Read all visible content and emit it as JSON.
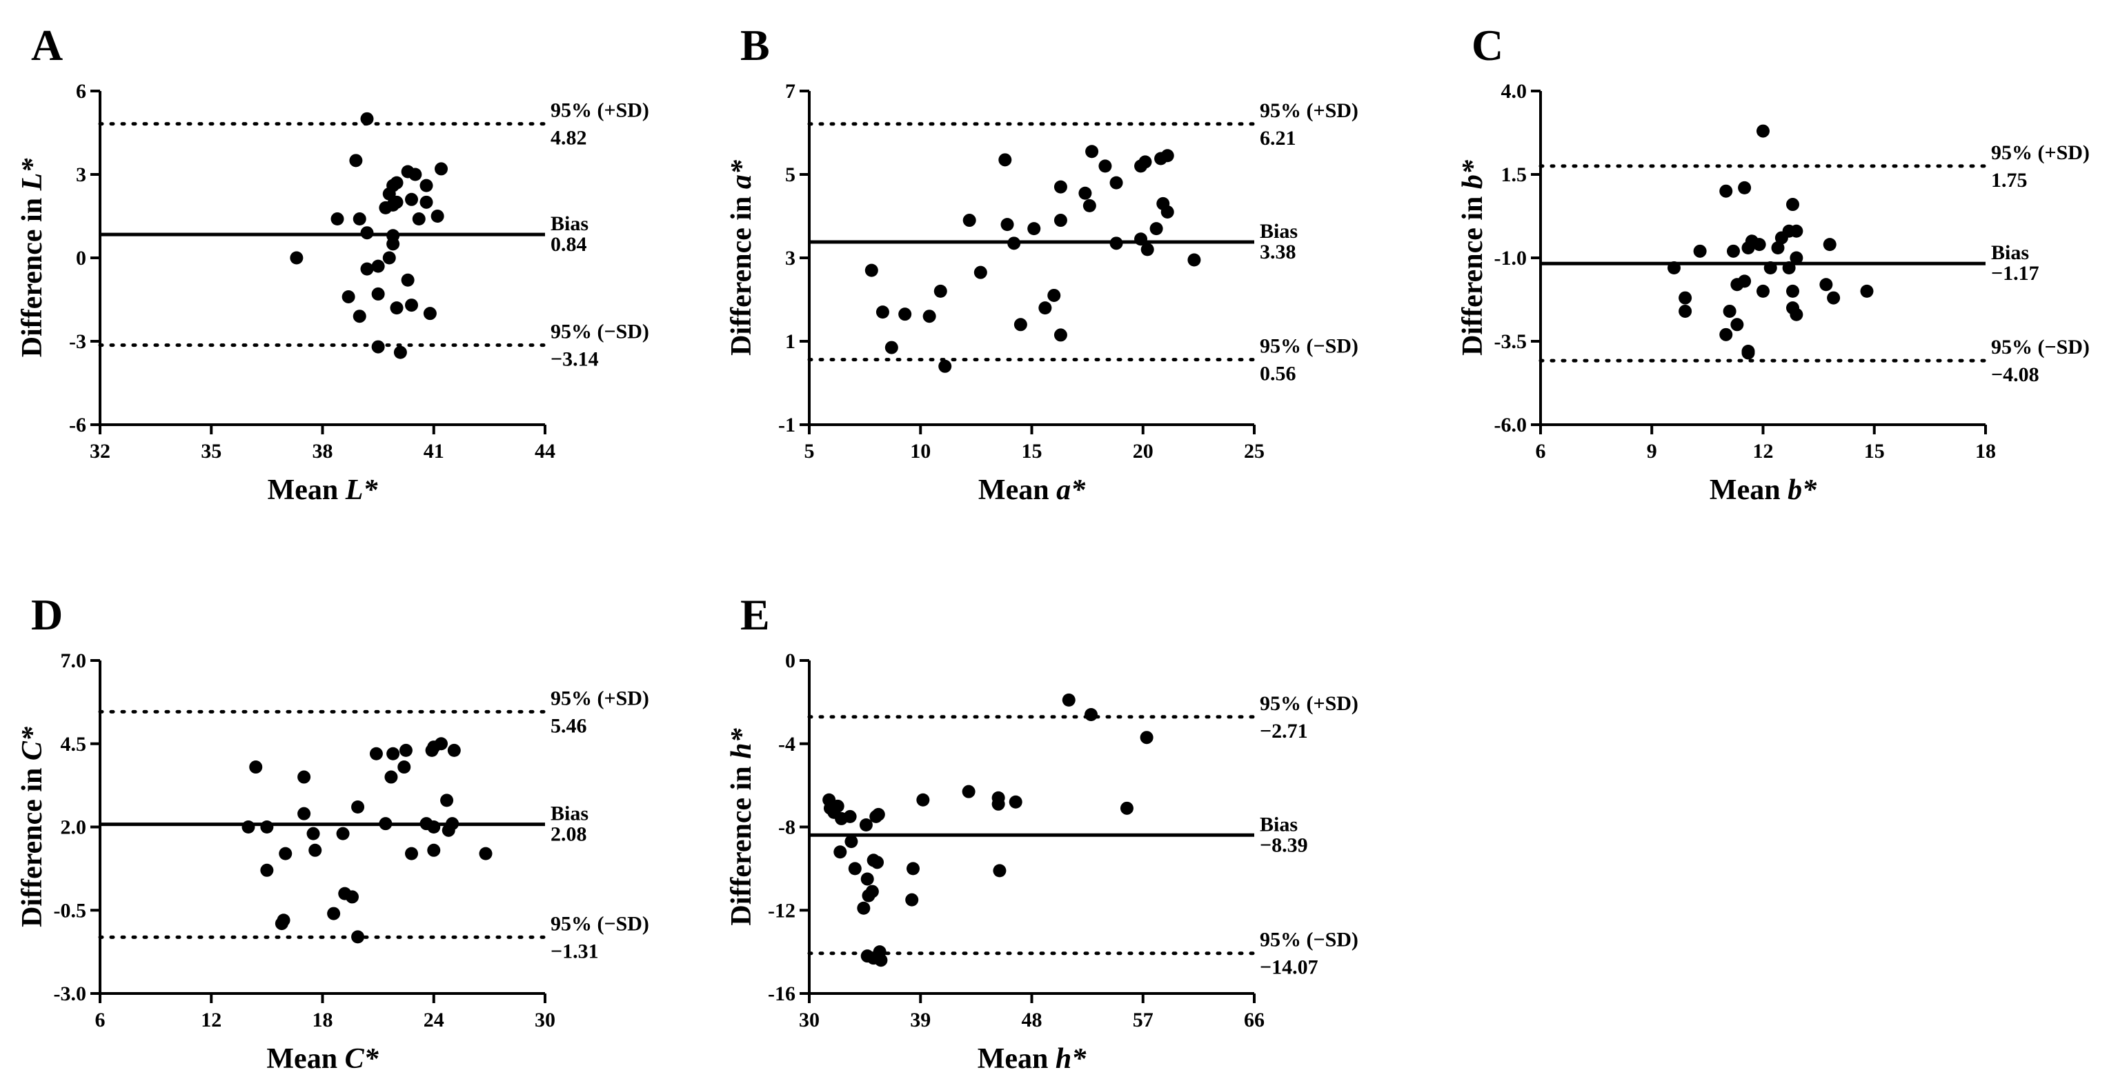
{
  "figure": {
    "background": "#ffffff",
    "ink": "#000000"
  },
  "chart_data": [
    {
      "type": "scatter",
      "panel": "A",
      "xlabel_pre": "Mean ",
      "xlabel_var": "L*",
      "ylabel_pre": "Difference in ",
      "ylabel_var": "L*",
      "xlim": [
        32,
        44
      ],
      "ylim": [
        -6,
        6
      ],
      "xticks": [
        32,
        35,
        38,
        41,
        44
      ],
      "yticks": [
        -6,
        -3,
        0,
        3,
        6
      ],
      "ytick_labels": [
        "-6",
        "-3",
        "0",
        "3",
        "6"
      ],
      "bias": 0.84,
      "upper": 4.82,
      "lower": -3.14,
      "bias_label": "Bias",
      "bias_value": "0.84",
      "upper_label": "95% (+SD)",
      "upper_value": "4.82",
      "lower_label": "95% (−SD)",
      "lower_value": "−3.14",
      "points": [
        [
          39.2,
          5.0
        ],
        [
          38.9,
          3.5
        ],
        [
          41.2,
          3.2
        ],
        [
          40.3,
          3.1
        ],
        [
          40.5,
          3.0
        ],
        [
          40.0,
          2.7
        ],
        [
          39.9,
          2.6
        ],
        [
          40.8,
          2.6
        ],
        [
          39.8,
          2.3
        ],
        [
          40.4,
          2.1
        ],
        [
          40.0,
          2.0
        ],
        [
          39.9,
          1.9
        ],
        [
          40.8,
          2.0
        ],
        [
          39.7,
          1.8
        ],
        [
          40.6,
          1.4
        ],
        [
          41.1,
          1.5
        ],
        [
          38.4,
          1.4
        ],
        [
          39.0,
          1.4
        ],
        [
          39.2,
          0.9
        ],
        [
          39.9,
          0.8
        ],
        [
          39.9,
          0.5
        ],
        [
          37.3,
          0.0
        ],
        [
          39.8,
          0.0
        ],
        [
          39.5,
          -0.3
        ],
        [
          39.2,
          -0.4
        ],
        [
          40.3,
          -0.8
        ],
        [
          38.7,
          -1.4
        ],
        [
          39.5,
          -1.3
        ],
        [
          40.4,
          -1.7
        ],
        [
          40.0,
          -1.8
        ],
        [
          40.9,
          -2.0
        ],
        [
          39.0,
          -2.1
        ],
        [
          39.5,
          -3.2
        ],
        [
          40.1,
          -3.4
        ]
      ]
    },
    {
      "type": "scatter",
      "panel": "B",
      "xlabel_pre": "Mean ",
      "xlabel_var": "a*",
      "ylabel_pre": "Difference in ",
      "ylabel_var": "a*",
      "xlim": [
        5,
        25
      ],
      "ylim": [
        -1,
        7
      ],
      "xticks": [
        5,
        10,
        15,
        20,
        25
      ],
      "yticks": [
        -1,
        1,
        3,
        5,
        7
      ],
      "ytick_labels": [
        "-1",
        "1",
        "3",
        "5",
        "7"
      ],
      "bias": 3.38,
      "upper": 6.21,
      "lower": 0.56,
      "bias_label": "Bias",
      "bias_value": "3.38",
      "upper_label": "95% (+SD)",
      "upper_value": "6.21",
      "lower_label": "95% (−SD)",
      "lower_value": "0.56",
      "points": [
        [
          17.7,
          5.55
        ],
        [
          21.1,
          5.45
        ],
        [
          20.8,
          5.38
        ],
        [
          13.8,
          5.35
        ],
        [
          20.1,
          5.3
        ],
        [
          19.9,
          5.2
        ],
        [
          18.3,
          5.2
        ],
        [
          17.4,
          4.55
        ],
        [
          18.8,
          4.8
        ],
        [
          16.3,
          4.7
        ],
        [
          17.6,
          4.25
        ],
        [
          20.9,
          4.3
        ],
        [
          21.1,
          4.1
        ],
        [
          12.2,
          3.9
        ],
        [
          16.3,
          3.9
        ],
        [
          13.9,
          3.8
        ],
        [
          15.1,
          3.7
        ],
        [
          20.6,
          3.7
        ],
        [
          19.9,
          3.45
        ],
        [
          18.8,
          3.35
        ],
        [
          14.2,
          3.35
        ],
        [
          20.2,
          3.2
        ],
        [
          22.3,
          2.95
        ],
        [
          7.8,
          2.7
        ],
        [
          12.7,
          2.65
        ],
        [
          10.9,
          2.2
        ],
        [
          16.0,
          2.1
        ],
        [
          15.6,
          1.8
        ],
        [
          8.3,
          1.7
        ],
        [
          9.3,
          1.65
        ],
        [
          10.4,
          1.6
        ],
        [
          14.5,
          1.4
        ],
        [
          16.3,
          1.15
        ],
        [
          8.7,
          0.85
        ],
        [
          11.1,
          0.4
        ]
      ]
    },
    {
      "type": "scatter",
      "panel": "C",
      "xlabel_pre": "Mean ",
      "xlabel_var": "b*",
      "ylabel_pre": "Difference in ",
      "ylabel_var": "b*",
      "xlim": [
        6,
        18
      ],
      "ylim": [
        -6,
        4
      ],
      "xticks": [
        6,
        9,
        12,
        15,
        18
      ],
      "yticks": [
        -6,
        -3.5,
        -1,
        1.5,
        4
      ],
      "ytick_labels": [
        "-6.0",
        "-3.5",
        "-1.0",
        "1.5",
        "4.0"
      ],
      "bias": -1.17,
      "upper": 1.75,
      "lower": -4.08,
      "bias_label": "Bias",
      "bias_value": "−1.17",
      "upper_label": "95% (+SD)",
      "upper_value": "1.75",
      "lower_label": "95% (−SD)",
      "lower_value": "−4.08",
      "points": [
        [
          12.0,
          2.8
        ],
        [
          11.0,
          1.0
        ],
        [
          11.5,
          1.1
        ],
        [
          12.8,
          0.6
        ],
        [
          12.9,
          -0.2
        ],
        [
          12.7,
          -0.2
        ],
        [
          12.5,
          -0.4
        ],
        [
          11.7,
          -0.5
        ],
        [
          11.9,
          -0.6
        ],
        [
          12.4,
          -0.7
        ],
        [
          11.6,
          -0.7
        ],
        [
          13.8,
          -0.6
        ],
        [
          10.3,
          -0.8
        ],
        [
          11.2,
          -0.8
        ],
        [
          12.9,
          -1.0
        ],
        [
          9.6,
          -1.3
        ],
        [
          12.7,
          -1.3
        ],
        [
          12.2,
          -1.3
        ],
        [
          11.5,
          -1.7
        ],
        [
          11.3,
          -1.8
        ],
        [
          13.7,
          -1.8
        ],
        [
          14.8,
          -2.0
        ],
        [
          12.0,
          -2.0
        ],
        [
          12.8,
          -2.0
        ],
        [
          13.9,
          -2.2
        ],
        [
          9.9,
          -2.2
        ],
        [
          12.8,
          -2.5
        ],
        [
          9.9,
          -2.6
        ],
        [
          12.9,
          -2.7
        ],
        [
          11.1,
          -2.6
        ],
        [
          11.3,
          -3.0
        ],
        [
          11.0,
          -3.3
        ],
        [
          11.6,
          -3.8
        ],
        [
          11.6,
          -3.85
        ]
      ]
    },
    {
      "type": "scatter",
      "panel": "D",
      "xlabel_pre": "Mean ",
      "xlabel_var": "C*",
      "ylabel_pre": "Difference in ",
      "ylabel_var": "C*",
      "xlim": [
        6,
        30
      ],
      "ylim": [
        -3,
        7
      ],
      "xticks": [
        6,
        12,
        18,
        24,
        30
      ],
      "yticks": [
        -3,
        -0.5,
        2,
        4.5,
        7
      ],
      "ytick_labels": [
        "-3.0",
        "-0.5",
        "2.0",
        "4.5",
        "7.0"
      ],
      "bias": 2.08,
      "upper": 5.46,
      "lower": -1.31,
      "bias_label": "Bias",
      "bias_value": "2.08",
      "upper_label": "95% (+SD)",
      "upper_value": "5.46",
      "lower_label": "95% (−SD)",
      "lower_value": "−1.31",
      "points": [
        [
          24.4,
          4.5
        ],
        [
          23.9,
          4.3
        ],
        [
          25.1,
          4.3
        ],
        [
          24.0,
          4.4
        ],
        [
          22.5,
          4.3
        ],
        [
          20.9,
          4.2
        ],
        [
          21.8,
          4.2
        ],
        [
          14.4,
          3.8
        ],
        [
          22.4,
          3.8
        ],
        [
          21.7,
          3.5
        ],
        [
          17.0,
          3.5
        ],
        [
          24.7,
          2.8
        ],
        [
          19.9,
          2.6
        ],
        [
          17.0,
          2.4
        ],
        [
          21.4,
          2.1
        ],
        [
          25.0,
          2.1
        ],
        [
          23.6,
          2.1
        ],
        [
          24.0,
          2.0
        ],
        [
          14.0,
          2.0
        ],
        [
          15.0,
          2.0
        ],
        [
          24.8,
          1.9
        ],
        [
          17.5,
          1.8
        ],
        [
          19.1,
          1.8
        ],
        [
          17.6,
          1.3
        ],
        [
          16.0,
          1.2
        ],
        [
          22.8,
          1.2
        ],
        [
          26.8,
          1.2
        ],
        [
          24.0,
          1.3
        ],
        [
          15.0,
          0.7
        ],
        [
          19.2,
          0.0
        ],
        [
          19.6,
          -0.1
        ],
        [
          18.6,
          -0.6
        ],
        [
          15.9,
          -0.8
        ],
        [
          15.8,
          -0.9
        ],
        [
          19.9,
          -1.3
        ]
      ]
    },
    {
      "type": "scatter",
      "panel": "E",
      "xlabel_pre": "Mean ",
      "xlabel_var": "h*",
      "ylabel_pre": "Difference in ",
      "ylabel_var": "h*",
      "xlim": [
        30,
        66
      ],
      "ylim": [
        -16,
        0
      ],
      "xticks": [
        30,
        39,
        48,
        57,
        66
      ],
      "yticks": [
        -16,
        -12,
        -8,
        -4,
        0
      ],
      "ytick_labels": [
        "-16",
        "-12",
        "-8",
        "-4",
        "0"
      ],
      "bias": -8.39,
      "upper": -2.71,
      "lower": -14.07,
      "bias_label": "Bias",
      "bias_value": "−8.39",
      "upper_label": "95% (+SD)",
      "upper_value": "−2.71",
      "lower_label": "95% (−SD)",
      "lower_value": "−14.07",
      "points": [
        [
          51.0,
          -1.9
        ],
        [
          52.8,
          -2.6
        ],
        [
          57.3,
          -3.7
        ],
        [
          42.9,
          -6.3
        ],
        [
          45.3,
          -6.6
        ],
        [
          39.2,
          -6.7
        ],
        [
          46.7,
          -6.8
        ],
        [
          45.3,
          -6.9
        ],
        [
          31.6,
          -6.7
        ],
        [
          31.7,
          -7.1
        ],
        [
          32.3,
          -7.0
        ],
        [
          32.0,
          -7.3
        ],
        [
          32.6,
          -7.6
        ],
        [
          33.3,
          -7.5
        ],
        [
          35.6,
          -7.4
        ],
        [
          35.4,
          -7.5
        ],
        [
          55.7,
          -7.1
        ],
        [
          34.6,
          -7.9
        ],
        [
          33.4,
          -8.7
        ],
        [
          32.5,
          -9.2
        ],
        [
          35.2,
          -9.6
        ],
        [
          35.5,
          -9.7
        ],
        [
          33.7,
          -10.0
        ],
        [
          38.4,
          -10.0
        ],
        [
          45.4,
          -10.1
        ],
        [
          34.7,
          -10.5
        ],
        [
          35.1,
          -11.1
        ],
        [
          34.8,
          -11.3
        ],
        [
          38.3,
          -11.5
        ],
        [
          34.4,
          -11.9
        ],
        [
          34.7,
          -14.2
        ],
        [
          35.7,
          -14.0
        ],
        [
          35.2,
          -14.3
        ],
        [
          35.8,
          -14.4
        ]
      ]
    }
  ]
}
